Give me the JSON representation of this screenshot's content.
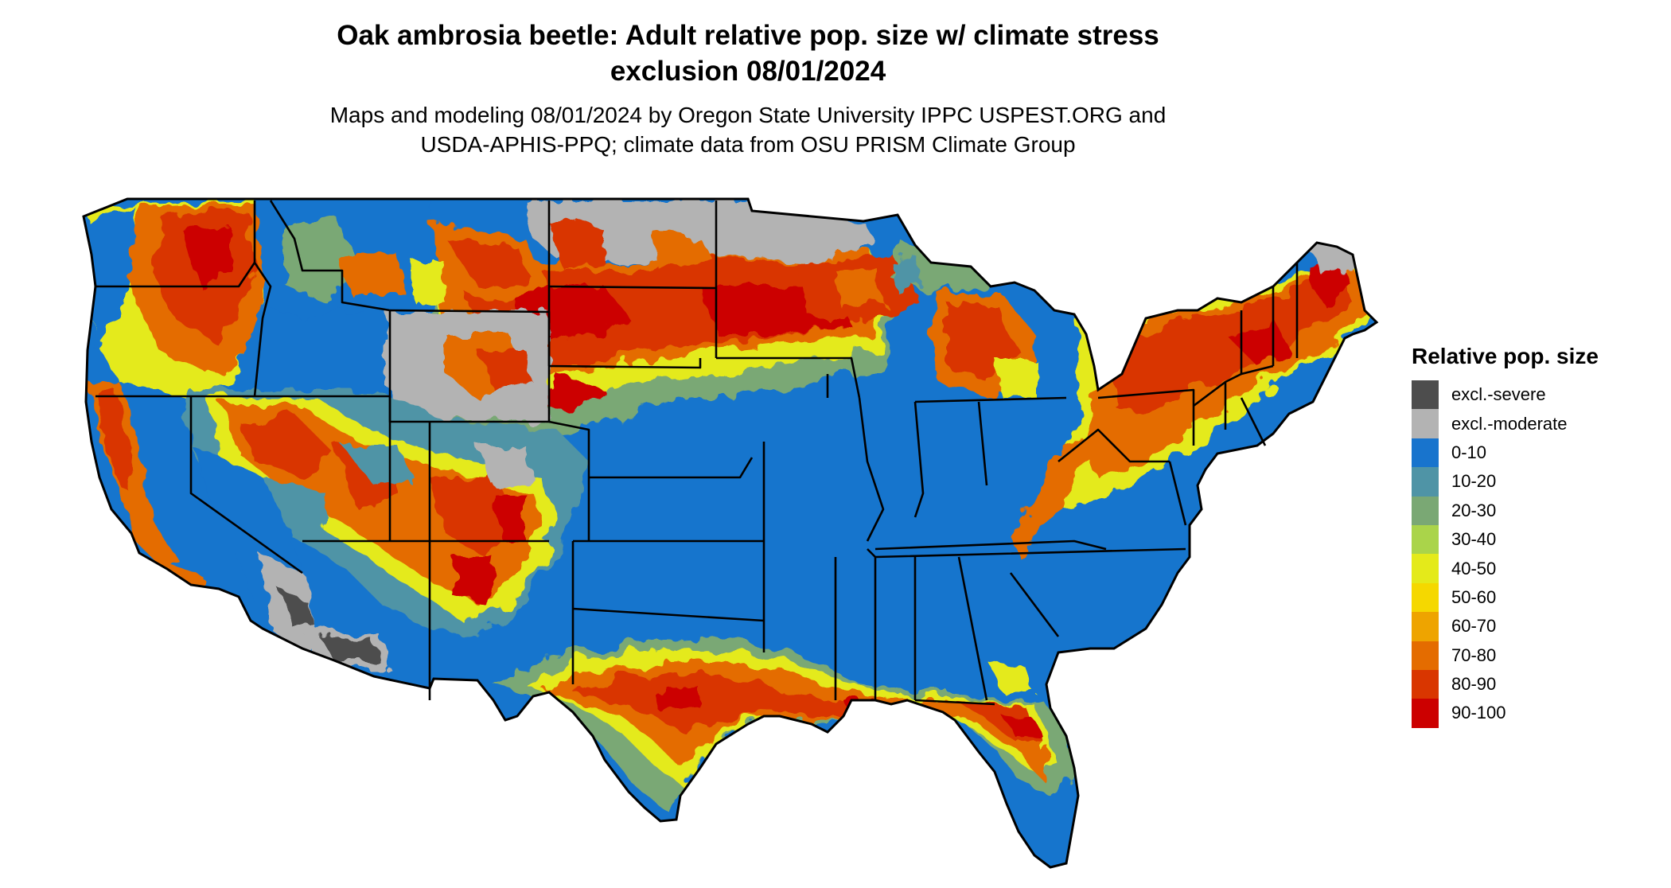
{
  "header": {
    "title_line1": "Oak ambrosia beetle: Adult relative pop. size w/ climate stress",
    "title_line2": "exclusion 08/01/2024",
    "subtitle_line1": "Maps and modeling 08/01/2024 by Oregon State University IPPC USPEST.ORG and",
    "subtitle_line2": "USDA-APHIS-PPQ; climate data from OSU PRISM Climate Group"
  },
  "legend": {
    "title": "Relative pop. size",
    "items": [
      {
        "label": "excl.-severe",
        "color": "#4d4d4d"
      },
      {
        "label": "excl.-moderate",
        "color": "#b3b3b3"
      },
      {
        "label": "0-10",
        "color": "#1874cd"
      },
      {
        "label": "10-20",
        "color": "#4f94a6"
      },
      {
        "label": "20-30",
        "color": "#7aa874"
      },
      {
        "label": "30-40",
        "color": "#aad44a"
      },
      {
        "label": "40-50",
        "color": "#e4ea1a"
      },
      {
        "label": "50-60",
        "color": "#f5d800"
      },
      {
        "label": "60-70",
        "color": "#eea400"
      },
      {
        "label": "70-80",
        "color": "#e46c00"
      },
      {
        "label": "80-90",
        "color": "#d93600"
      },
      {
        "label": "90-100",
        "color": "#cc0000"
      }
    ]
  }
}
